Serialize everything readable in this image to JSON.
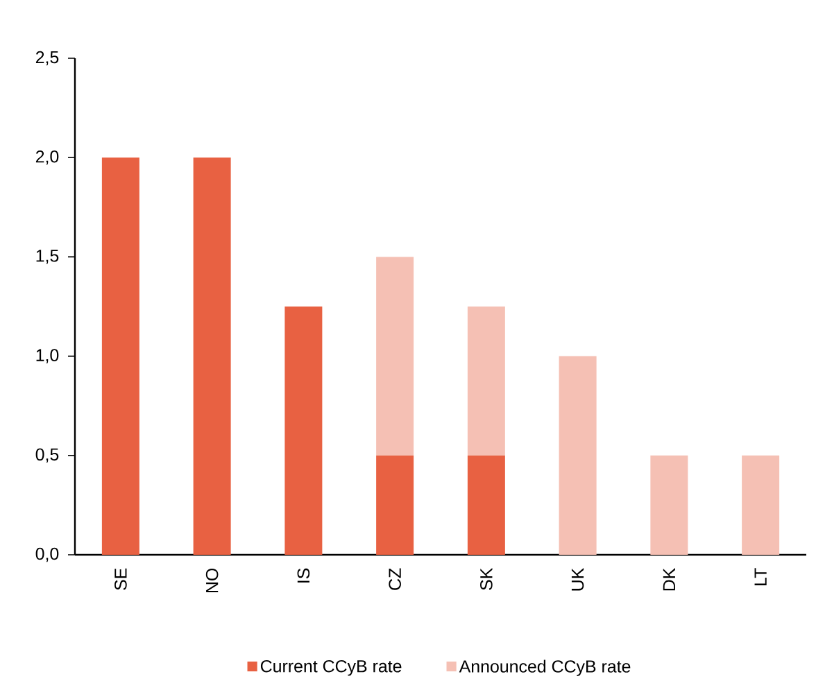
{
  "chart_data": {
    "type": "bar",
    "stacked": true,
    "categories": [
      "SE",
      "NO",
      "IS",
      "CZ",
      "SK",
      "UK",
      "DK",
      "LT"
    ],
    "series": [
      {
        "name": "Current CCyB rate",
        "color": "#e86142",
        "values": [
          2.0,
          2.0,
          1.25,
          0.5,
          0.5,
          0,
          0,
          0
        ]
      },
      {
        "name": "Announced CCyB rate",
        "color": "#f5c0b4",
        "values": [
          0,
          0,
          0,
          1.0,
          0.75,
          1.0,
          0.5,
          0.5
        ]
      }
    ],
    "ylim": [
      0,
      2.5
    ],
    "yticks": [
      {
        "value": 0,
        "label": "0,0"
      },
      {
        "value": 0.5,
        "label": "0,5"
      },
      {
        "value": 1,
        "label": "1,0"
      },
      {
        "value": 1.5,
        "label": "1,5"
      },
      {
        "value": 2,
        "label": "2,0"
      },
      {
        "value": 2.5,
        "label": "2,5"
      }
    ],
    "grid": false,
    "legend": "bottom"
  }
}
